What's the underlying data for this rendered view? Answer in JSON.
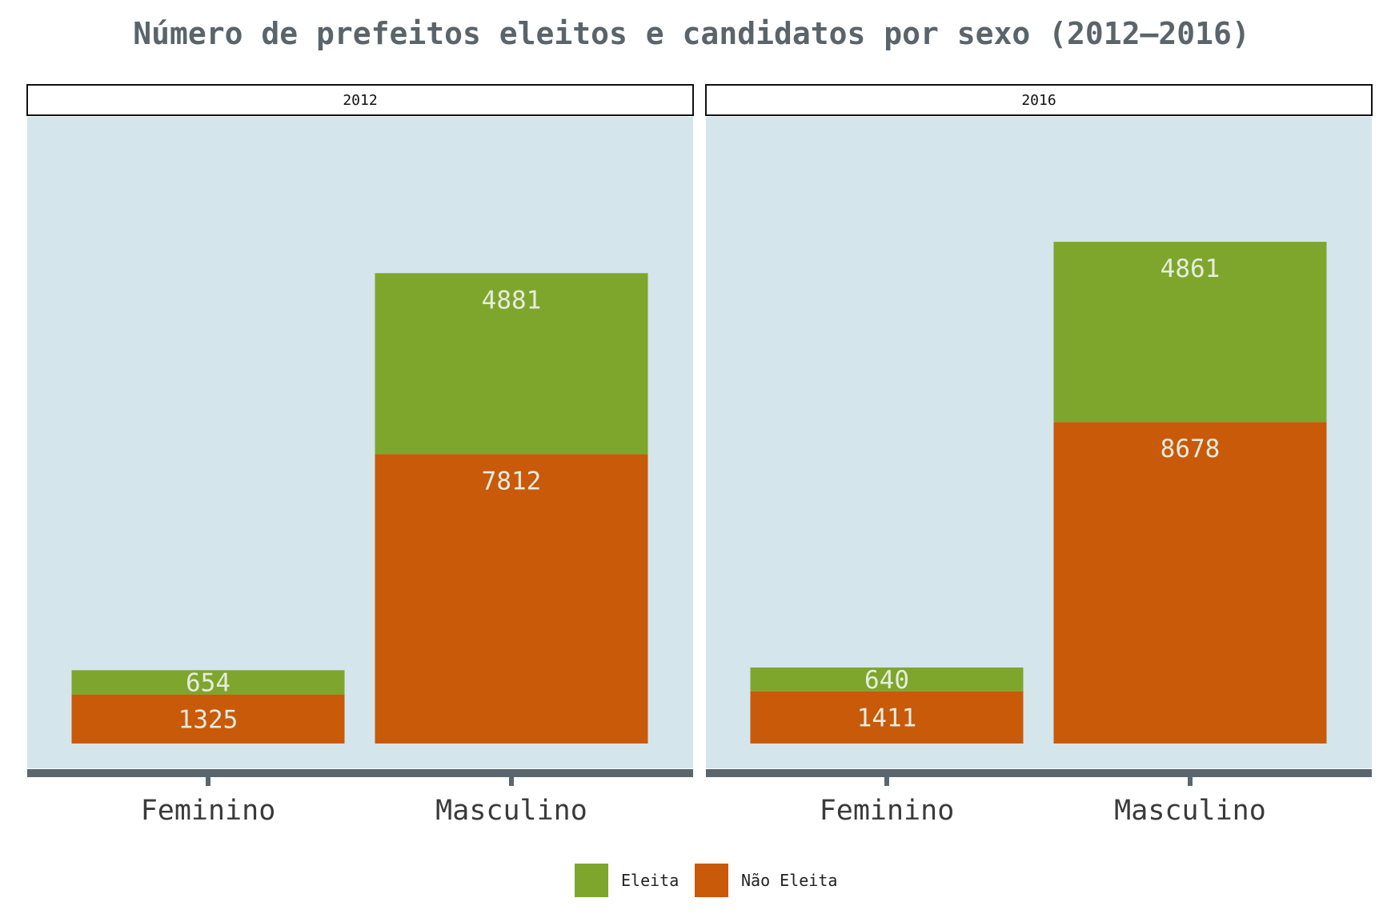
{
  "chart_data": {
    "type": "bar",
    "stacked": true,
    "title": "Número de prefeitos eleitos e candidatos por sexo (2012–2016)",
    "xlabel": "",
    "ylabel": "",
    "facets": [
      "2012",
      "2016"
    ],
    "categories": [
      "Feminino",
      "Masculino"
    ],
    "series": [
      {
        "name": "Eleita",
        "color": "#7ea62d",
        "values": {
          "2012": [
            654,
            4881
          ],
          "2016": [
            640,
            4861
          ]
        }
      },
      {
        "name": "Não Eleita",
        "color": "#c85a0a",
        "values": {
          "2012": [
            1325,
            7812
          ],
          "2016": [
            1411,
            8678
          ]
        }
      }
    ],
    "stack_order_bottom_to_top": [
      "Não Eleita",
      "Eleita"
    ],
    "ylim": [
      0,
      14700
    ],
    "grid": false,
    "y_axis_shown": false,
    "legend_position": "bottom",
    "panel_background": "#d4e5ec",
    "axis_color": "#5a666e"
  }
}
